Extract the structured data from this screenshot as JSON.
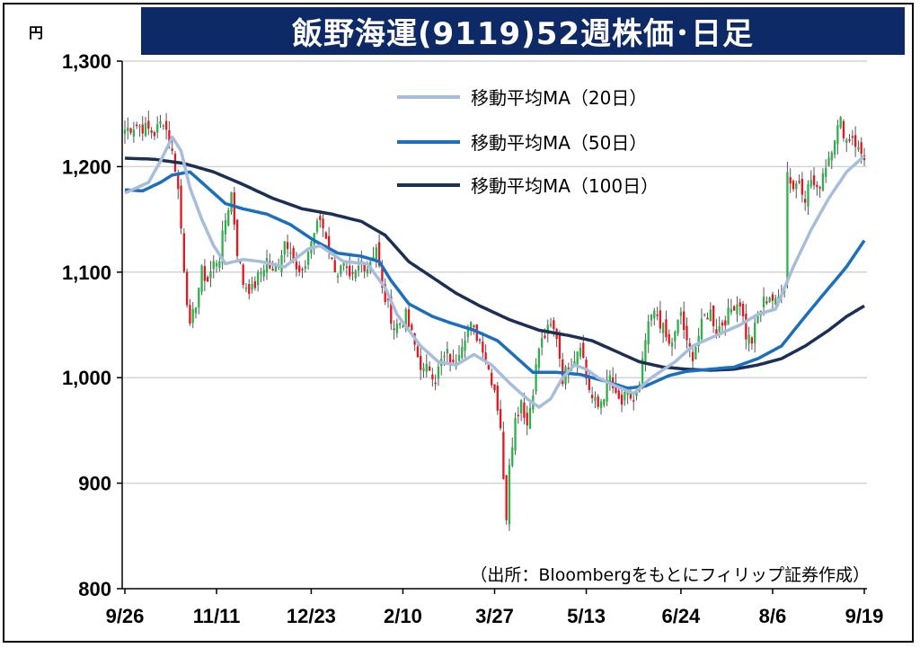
{
  "title": "飯野海運(9119)52週株価･日足",
  "source_note": "（出所：Bloombergをもとにフィリップ証券作成）",
  "colors": {
    "title_bg": "#0d2a66",
    "up": "#2cb24a",
    "down": "#e8141e",
    "ma20": "#a8bddc",
    "ma50": "#1a6fbe",
    "ma100": "#1c2f55"
  },
  "chart_data": {
    "type": "candlestick",
    "y_unit": "円",
    "ylim": [
      800,
      1300
    ],
    "y_ticks": [
      800,
      900,
      1000,
      1100,
      1200,
      1300
    ],
    "y_tick_labels": [
      "800",
      "900",
      "1,000",
      "1,100",
      "1,200",
      "1,300"
    ],
    "x_tick_labels": [
      "9/26",
      "11/11",
      "12/23",
      "2/10",
      "3/27",
      "5/13",
      "6/24",
      "8/6",
      "9/19"
    ],
    "grid": true,
    "legend": "top-right",
    "series": [
      {
        "name": "移動平均MA（20日）",
        "key": "ma20"
      },
      {
        "name": "移動平均MA（50日）",
        "key": "ma50"
      },
      {
        "name": "移動平均MA（100日）",
        "key": "ma100"
      }
    ],
    "close_anchors": [
      [
        0,
        1235
      ],
      [
        4,
        1240
      ],
      [
        10,
        1232
      ],
      [
        13,
        1245
      ],
      [
        15,
        1225
      ],
      [
        17,
        1200
      ],
      [
        18,
        1178
      ],
      [
        20,
        1105
      ],
      [
        22,
        1045
      ],
      [
        24,
        1072
      ],
      [
        26,
        1100
      ],
      [
        28,
        1092
      ],
      [
        30,
        1108
      ],
      [
        32,
        1115
      ],
      [
        34,
        1150
      ],
      [
        36,
        1175
      ],
      [
        38,
        1120
      ],
      [
        40,
        1090
      ],
      [
        43,
        1083
      ],
      [
        46,
        1100
      ],
      [
        48,
        1112
      ],
      [
        50,
        1098
      ],
      [
        52,
        1110
      ],
      [
        54,
        1130
      ],
      [
        56,
        1125
      ],
      [
        58,
        1100
      ],
      [
        60,
        1096
      ],
      [
        62,
        1120
      ],
      [
        64,
        1138
      ],
      [
        66,
        1150
      ],
      [
        68,
        1135
      ],
      [
        70,
        1110
      ],
      [
        72,
        1100
      ],
      [
        74,
        1105
      ],
      [
        76,
        1090
      ],
      [
        78,
        1098
      ],
      [
        80,
        1110
      ],
      [
        82,
        1105
      ],
      [
        85,
        1125
      ],
      [
        87,
        1082
      ],
      [
        89,
        1068
      ],
      [
        91,
        1048
      ],
      [
        93,
        1052
      ],
      [
        95,
        1058
      ],
      [
        97,
        1040
      ],
      [
        99,
        1020
      ],
      [
        101,
        1005
      ],
      [
        103,
        1010
      ],
      [
        105,
        1000
      ],
      [
        107,
        1015
      ],
      [
        109,
        1022
      ],
      [
        111,
        1010
      ],
      [
        113,
        1028
      ],
      [
        115,
        1042
      ],
      [
        117,
        1048
      ],
      [
        119,
        1040
      ],
      [
        121,
        1030
      ],
      [
        123,
        1008
      ],
      [
        125,
        990
      ],
      [
        127,
        955
      ],
      [
        128,
        900
      ],
      [
        129,
        870
      ],
      [
        130,
        922
      ],
      [
        132,
        960
      ],
      [
        134,
        980
      ],
      [
        136,
        955
      ],
      [
        138,
        990
      ],
      [
        140,
        1028
      ],
      [
        142,
        1040
      ],
      [
        144,
        1048
      ],
      [
        146,
        1040
      ],
      [
        148,
        1000
      ],
      [
        150,
        1010
      ],
      [
        152,
        1020
      ],
      [
        154,
        1035
      ],
      [
        156,
        1000
      ],
      [
        158,
        980
      ],
      [
        160,
        972
      ],
      [
        162,
        985
      ],
      [
        164,
        1000
      ],
      [
        166,
        980
      ],
      [
        168,
        975
      ],
      [
        170,
        985
      ],
      [
        172,
        978
      ],
      [
        174,
        990
      ],
      [
        176,
        1035
      ],
      [
        178,
        1058
      ],
      [
        180,
        1060
      ],
      [
        182,
        1045
      ],
      [
        184,
        1030
      ],
      [
        186,
        1040
      ],
      [
        188,
        1062
      ],
      [
        190,
        1030
      ],
      [
        192,
        1022
      ],
      [
        194,
        1040
      ],
      [
        196,
        1058
      ],
      [
        198,
        1062
      ],
      [
        200,
        1045
      ],
      [
        202,
        1052
      ],
      [
        204,
        1060
      ],
      [
        206,
        1070
      ],
      [
        208,
        1072
      ],
      [
        210,
        1040
      ],
      [
        212,
        1035
      ],
      [
        214,
        1058
      ],
      [
        216,
        1072
      ],
      [
        218,
        1078
      ],
      [
        220,
        1070
      ],
      [
        222,
        1082
      ],
      [
        223,
        1090
      ],
      [
        224,
        1195
      ],
      [
        226,
        1180
      ],
      [
        228,
        1188
      ],
      [
        230,
        1172
      ],
      [
        232,
        1188
      ],
      [
        234,
        1175
      ],
      [
        236,
        1195
      ],
      [
        238,
        1210
      ],
      [
        240,
        1230
      ],
      [
        242,
        1242
      ],
      [
        244,
        1225
      ],
      [
        246,
        1230
      ],
      [
        248,
        1215
      ],
      [
        250,
        1210
      ]
    ],
    "ma_anchors": {
      "ma20": [
        [
          0,
          1175
        ],
        [
          8,
          1185
        ],
        [
          12,
          1205
        ],
        [
          16,
          1228
        ],
        [
          19,
          1215
        ],
        [
          22,
          1180
        ],
        [
          26,
          1150
        ],
        [
          30,
          1125
        ],
        [
          34,
          1108
        ],
        [
          40,
          1112
        ],
        [
          46,
          1110
        ],
        [
          54,
          1105
        ],
        [
          62,
          1122
        ],
        [
          66,
          1125
        ],
        [
          74,
          1110
        ],
        [
          82,
          1108
        ],
        [
          88,
          1085
        ],
        [
          92,
          1060
        ],
        [
          96,
          1045
        ],
        [
          100,
          1030
        ],
        [
          106,
          1015
        ],
        [
          112,
          1012
        ],
        [
          118,
          1022
        ],
        [
          124,
          1012
        ],
        [
          130,
          995
        ],
        [
          136,
          980
        ],
        [
          140,
          972
        ],
        [
          144,
          980
        ],
        [
          148,
          1000
        ],
        [
          152,
          1012
        ],
        [
          156,
          1008
        ],
        [
          160,
          1000
        ],
        [
          166,
          992
        ],
        [
          172,
          985
        ],
        [
          178,
          1000
        ],
        [
          186,
          1015
        ],
        [
          192,
          1030
        ],
        [
          200,
          1040
        ],
        [
          208,
          1050
        ],
        [
          214,
          1060
        ],
        [
          220,
          1065
        ],
        [
          226,
          1105
        ],
        [
          232,
          1140
        ],
        [
          238,
          1170
        ],
        [
          244,
          1195
        ],
        [
          250,
          1210
        ]
      ],
      "ma50": [
        [
          0,
          1178
        ],
        [
          6,
          1177
        ],
        [
          12,
          1185
        ],
        [
          16,
          1192
        ],
        [
          22,
          1195
        ],
        [
          28,
          1180
        ],
        [
          34,
          1165
        ],
        [
          40,
          1160
        ],
        [
          48,
          1155
        ],
        [
          56,
          1145
        ],
        [
          64,
          1130
        ],
        [
          72,
          1118
        ],
        [
          80,
          1115
        ],
        [
          86,
          1110
        ],
        [
          90,
          1092
        ],
        [
          96,
          1070
        ],
        [
          104,
          1058
        ],
        [
          110,
          1052
        ],
        [
          118,
          1045
        ],
        [
          126,
          1035
        ],
        [
          132,
          1020
        ],
        [
          138,
          1005
        ],
        [
          146,
          1005
        ],
        [
          154,
          1003
        ],
        [
          162,
          997
        ],
        [
          170,
          990
        ],
        [
          176,
          992
        ],
        [
          184,
          1002
        ],
        [
          190,
          1006
        ],
        [
          198,
          1008
        ],
        [
          206,
          1010
        ],
        [
          214,
          1018
        ],
        [
          222,
          1030
        ],
        [
          230,
          1058
        ],
        [
          238,
          1085
        ],
        [
          244,
          1105
        ],
        [
          250,
          1130
        ]
      ],
      "ma100": [
        [
          0,
          1208
        ],
        [
          10,
          1207
        ],
        [
          20,
          1203
        ],
        [
          30,
          1195
        ],
        [
          40,
          1183
        ],
        [
          50,
          1170
        ],
        [
          60,
          1160
        ],
        [
          70,
          1155
        ],
        [
          80,
          1148
        ],
        [
          88,
          1135
        ],
        [
          96,
          1110
        ],
        [
          104,
          1095
        ],
        [
          112,
          1080
        ],
        [
          120,
          1068
        ],
        [
          130,
          1055
        ],
        [
          140,
          1045
        ],
        [
          150,
          1040
        ],
        [
          158,
          1035
        ],
        [
          166,
          1025
        ],
        [
          174,
          1015
        ],
        [
          182,
          1010
        ],
        [
          190,
          1008
        ],
        [
          198,
          1007
        ],
        [
          206,
          1008
        ],
        [
          214,
          1012
        ],
        [
          222,
          1018
        ],
        [
          230,
          1030
        ],
        [
          238,
          1045
        ],
        [
          244,
          1058
        ],
        [
          250,
          1068
        ]
      ]
    },
    "session_count": 251
  }
}
